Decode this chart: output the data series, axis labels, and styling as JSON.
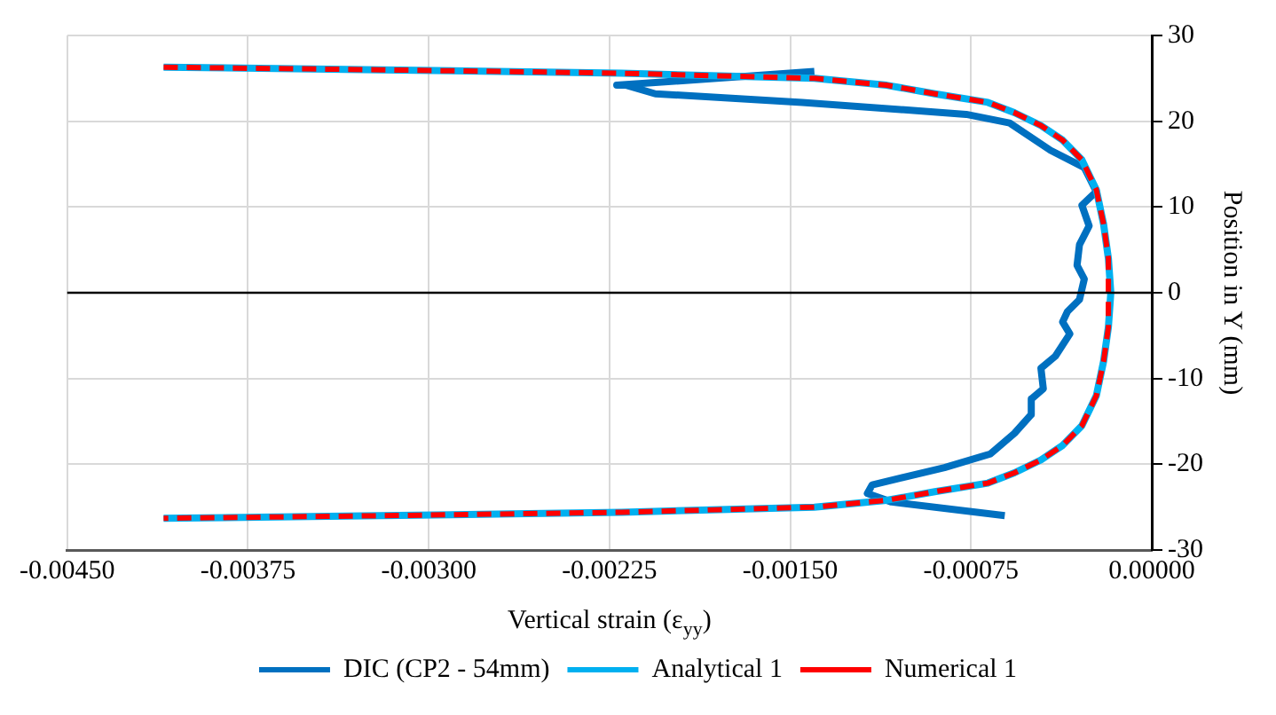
{
  "chart_data": {
    "type": "line",
    "xlabel": "Vertical strain (ε$_{yy}$)",
    "ylabel": "Position in Y (mm)",
    "xlim": [
      -0.0045,
      0
    ],
    "xticks": [
      {
        "value": -0.0045,
        "label": "-0.00450"
      },
      {
        "value": -0.00375,
        "label": "-0.00375"
      },
      {
        "value": -0.003,
        "label": "-0.00300"
      },
      {
        "value": -0.00225,
        "label": "-0.00225"
      },
      {
        "value": -0.0015,
        "label": "-0.00150"
      },
      {
        "value": -0.00075,
        "label": "-0.00075"
      },
      {
        "value": 0,
        "label": "0.00000"
      }
    ],
    "ylim": [
      -30,
      30
    ],
    "yticks": [
      -30,
      -20,
      -10,
      0,
      10,
      20,
      30
    ],
    "grid": true,
    "legend": "bottom",
    "ref_lines": [
      {
        "axis": "y",
        "value": 0,
        "color": "#000000"
      }
    ],
    "series": [
      {
        "name": "DIC (CP2 - 54mm)",
        "color": "#0070c0",
        "line_style": "solid",
        "x": [
          -0.0014,
          -0.00222,
          -0.00218,
          -0.00206,
          -0.00145,
          -0.00077,
          -0.00059,
          -0.00042,
          -0.00028,
          -0.00023,
          -0.00029,
          -0.00026,
          -0.0003,
          -0.00031,
          -0.00028,
          -0.0003,
          -0.00035,
          -0.00037,
          -0.00034,
          -0.0004,
          -0.00046,
          -0.00045,
          -0.0005,
          -0.0005,
          -0.00057,
          -0.00067,
          -0.00086,
          -0.00116,
          -0.00118,
          -0.00108,
          -0.00061
        ],
        "values": [
          25.8,
          24.2,
          24.2,
          23.2,
          22.2,
          20.8,
          19.8,
          16.6,
          14.6,
          11.8,
          10.2,
          7.8,
          5.6,
          3.2,
          1.6,
          -0.8,
          -2.2,
          -3.4,
          -4.8,
          -7.4,
          -8.8,
          -11.2,
          -12.4,
          -14.2,
          -16.4,
          -18.8,
          -20.4,
          -22.4,
          -23.4,
          -24.4,
          -26
        ]
      },
      {
        "name": "Analytical 1",
        "color": "#00b0f0",
        "line_style": "solid",
        "x": [
          -0.0041,
          -0.0032,
          -0.0022,
          -0.0014,
          -0.0011,
          -0.0009,
          -0.00068,
          -0.00057,
          -0.00046,
          -0.00037,
          -0.00029,
          -0.00023,
          -0.0002,
          -0.00018,
          -0.00017,
          -0.00018,
          -0.0002,
          -0.00023,
          -0.00029,
          -0.00037,
          -0.00046,
          -0.00057,
          -0.00068,
          -0.0009,
          -0.0011,
          -0.0014,
          -0.0022,
          -0.0032,
          -0.0041
        ],
        "values": [
          26.3,
          26.0,
          25.6,
          25.0,
          24.2,
          23.2,
          22.2,
          21.0,
          19.5,
          17.8,
          15.5,
          12,
          8,
          4,
          0,
          -4,
          -8,
          -12,
          -15.5,
          -17.8,
          -19.5,
          -21,
          -22.2,
          -23.2,
          -24.2,
          -25,
          -25.6,
          -26,
          -26.3
        ]
      },
      {
        "name": "Numerical 1",
        "color": "#ff0000",
        "line_style": "dashed",
        "x": [
          -0.0041,
          -0.0032,
          -0.0022,
          -0.0014,
          -0.0011,
          -0.0009,
          -0.00068,
          -0.00057,
          -0.00046,
          -0.00037,
          -0.00029,
          -0.00023,
          -0.0002,
          -0.00018,
          -0.00018,
          -0.00018,
          -0.0002,
          -0.00023,
          -0.00029,
          -0.00037,
          -0.00046,
          -0.00057,
          -0.00068,
          -0.0009,
          -0.0011,
          -0.0014,
          -0.0022,
          -0.0032,
          -0.0041
        ],
        "values": [
          26.3,
          26.0,
          25.6,
          25.0,
          24.2,
          23.2,
          22.2,
          21.0,
          19.5,
          17.8,
          15.5,
          12,
          8,
          4,
          0,
          -4,
          -8,
          -12,
          -15.5,
          -17.8,
          -19.5,
          -21,
          -22.2,
          -23.2,
          -24.2,
          -25,
          -25.6,
          -26,
          -26.3
        ]
      }
    ]
  }
}
